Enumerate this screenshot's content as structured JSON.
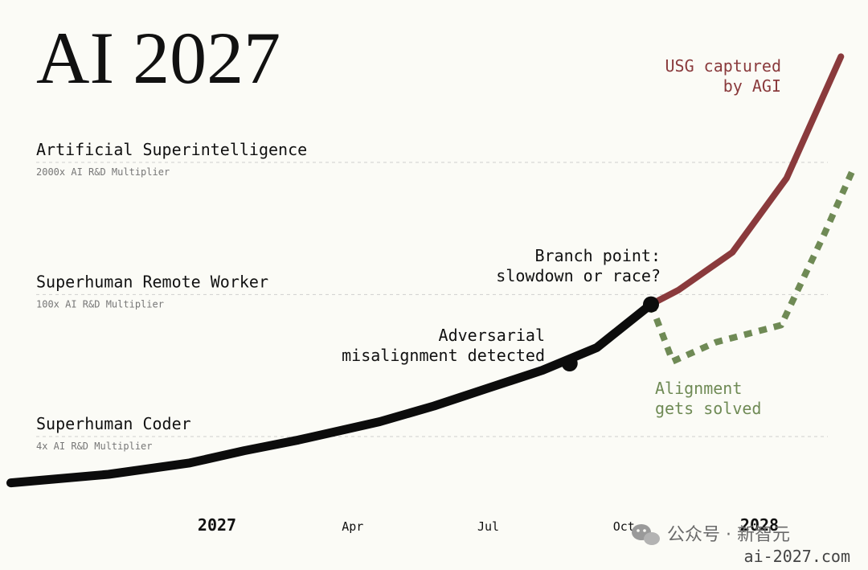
{
  "title": "AI 2027",
  "levels": [
    {
      "label": "Artificial Superintelligence",
      "sub": "2000x AI R&D Multiplier",
      "y": 2000
    },
    {
      "label": "Superhuman Remote Worker",
      "sub": "100x AI R&D Multiplier",
      "y": 100
    },
    {
      "label": "Superhuman Coder",
      "sub": "4x AI R&D Multiplier",
      "y": 4
    }
  ],
  "x_ticks": [
    {
      "label": "2027",
      "x": 2027.0,
      "major": true
    },
    {
      "label": "Apr",
      "x": 2027.25,
      "major": false
    },
    {
      "label": "Jul",
      "x": 2027.5,
      "major": false
    },
    {
      "label": "Oct",
      "x": 2027.75,
      "major": false
    },
    {
      "label": "2028",
      "x": 2028.0,
      "major": true
    }
  ],
  "annotations": {
    "branch_line1": "Branch point:",
    "branch_line2": "slowdown or race?",
    "adversarial_line1": "Adversarial",
    "adversarial_line2": "misalignment detected",
    "usg_line1": "USG captured",
    "usg_line2": "by AGI",
    "alignment_line1": "Alignment",
    "alignment_line2": "gets solved"
  },
  "watermark": "公众号 · 新智元",
  "source": "ai-2027.com",
  "colors": {
    "main": "#0c0c0c",
    "race": "#8a3a3c",
    "slowdown": "#6f8a55",
    "grid": "#cfcfcf",
    "background": "#fbfbf6"
  },
  "chart_data": {
    "type": "line",
    "title": "AI 2027",
    "y_scale": "log",
    "ylim": [
      1,
      10000
    ],
    "xlim": [
      2026.6,
      2028.2
    ],
    "grid": false,
    "series": [
      {
        "color": "#0c0c0c",
        "style": "solid",
        "points": [
          [
            2026.62,
            1.4
          ],
          [
            2026.8,
            1.7
          ],
          [
            2026.95,
            2.2
          ],
          [
            2027.05,
            2.9
          ],
          [
            2027.15,
            3.7
          ],
          [
            2027.3,
            5.6
          ],
          [
            2027.4,
            8.0
          ],
          [
            2027.5,
            12
          ],
          [
            2027.6,
            18
          ],
          [
            2027.7,
            30
          ],
          [
            2027.8,
            80
          ]
        ]
      },
      {
        "color": "#8a3a3c",
        "style": "solid",
        "points": [
          [
            2027.8,
            80
          ],
          [
            2027.85,
            110
          ],
          [
            2027.95,
            260
          ],
          [
            2028.05,
            1400
          ],
          [
            2028.15,
            22000
          ]
        ]
      },
      {
        "color": "#6f8a55",
        "style": "dotted",
        "points": [
          [
            2027.8,
            80
          ],
          [
            2027.84,
            22
          ],
          [
            2027.92,
            34
          ],
          [
            2028.04,
            50
          ],
          [
            2028.12,
            400
          ],
          [
            2028.17,
            1600
          ]
        ]
      }
    ],
    "markers": [
      {
        "x": 2027.65,
        "y": 21,
        "label": "Adversarial misalignment detected"
      },
      {
        "x": 2027.8,
        "y": 80,
        "label": "Branch point: slowdown or race?"
      }
    ]
  }
}
